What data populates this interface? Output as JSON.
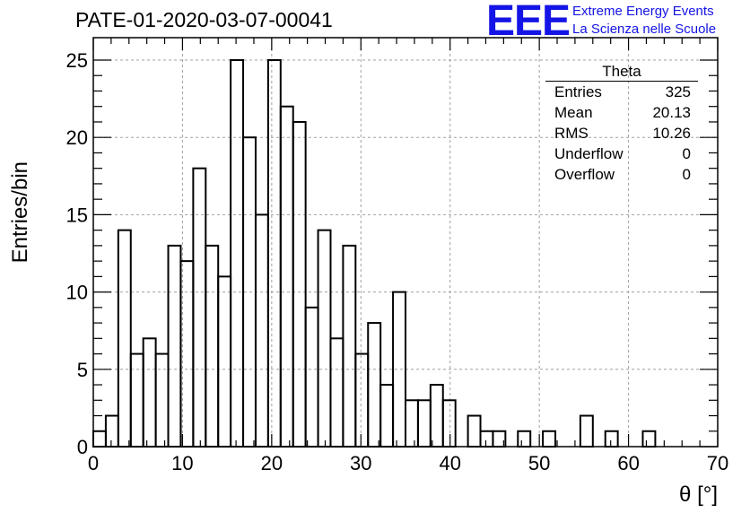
{
  "header": {
    "title": "PATE-01-2020-03-07-00041",
    "logo_mark": "EEE",
    "logo_line1": "Extreme Energy Events",
    "logo_line2": "La Scienza nelle Scuole"
  },
  "stats_box": {
    "title": "Theta",
    "rows": [
      {
        "key": "Entries",
        "value": "325"
      },
      {
        "key": "Mean",
        "value": "20.13"
      },
      {
        "key": "RMS",
        "value": "10.26"
      },
      {
        "key": "Underflow",
        "value": "0"
      },
      {
        "key": "Overflow",
        "value": "0"
      }
    ]
  },
  "colors": {
    "line": "#000000",
    "grid": "#a0a0a0",
    "logo": "#1414e6"
  },
  "chart_data": {
    "type": "bar",
    "style": "step-histogram",
    "xlabel": "θ [°]",
    "ylabel": "Entries/bin",
    "xlim": [
      0,
      70
    ],
    "ylim": [
      0,
      26
    ],
    "grid": true,
    "bin_width": 1.4,
    "x_ticks": [
      0,
      10,
      20,
      30,
      40,
      50,
      60,
      70
    ],
    "y_ticks": [
      0,
      5,
      10,
      15,
      20,
      25
    ],
    "values": [
      1,
      2,
      14,
      6,
      7,
      6,
      13,
      12,
      18,
      13,
      11,
      25,
      20,
      15,
      25,
      22,
      21,
      9,
      14,
      7,
      13,
      6,
      8,
      4,
      10,
      3,
      3,
      4,
      3,
      0,
      2,
      1,
      1,
      0,
      1,
      0,
      1,
      0,
      0,
      2,
      0,
      1,
      0,
      0,
      1,
      0,
      0,
      0,
      0,
      0
    ]
  }
}
